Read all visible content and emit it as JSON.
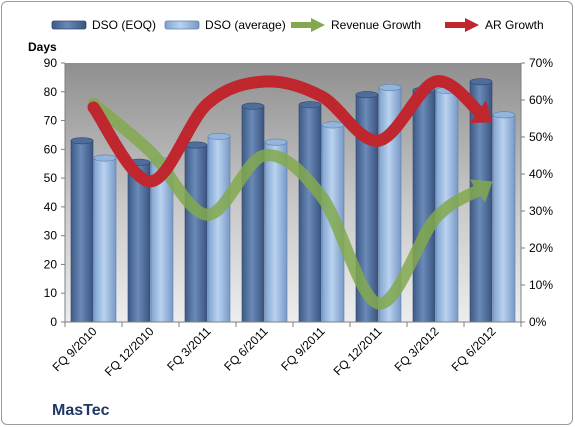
{
  "chart_data": {
    "type": "bar",
    "title": "",
    "ylabel": "Days",
    "company": "MasTec",
    "categories": [
      "FQ 9/2010",
      "FQ 12/2010",
      "FQ 3/2011",
      "FQ 6/2011",
      "FQ 9/2011",
      "FQ 12/2011",
      "FQ 3/2012",
      "FQ 6/2012"
    ],
    "ylim": [
      0,
      90
    ],
    "yticks": [
      0,
      10,
      20,
      30,
      40,
      50,
      60,
      70,
      80,
      90
    ],
    "y2lim": [
      0,
      70
    ],
    "y2ticks": [
      "0%",
      "10%",
      "20%",
      "30%",
      "40%",
      "50%",
      "60%",
      "70%"
    ],
    "grid": false,
    "legend_position": "top",
    "series": [
      {
        "name": "DSO (EOQ)",
        "type": "bar",
        "axis": "left",
        "color": "#4f6d9a",
        "values": [
          63,
          55.5,
          61.5,
          75,
          75.5,
          79,
          80.5,
          83.5
        ]
      },
      {
        "name": "DSO (average)",
        "type": "bar",
        "axis": "left",
        "color": "#93b4db",
        "values": [
          57,
          56,
          64.5,
          62.5,
          68.5,
          81.5,
          80.5,
          72
        ]
      },
      {
        "name": "Revenue Growth",
        "type": "line",
        "axis": "right",
        "unit": "%",
        "color": "#82a94d",
        "values": [
          59,
          46,
          29,
          45,
          34,
          5,
          28,
          38
        ]
      },
      {
        "name": "AR Growth",
        "type": "line",
        "axis": "right",
        "unit": "%",
        "color": "#c0262d",
        "values": [
          58,
          38,
          59,
          65,
          61,
          49,
          65,
          54
        ]
      }
    ]
  }
}
